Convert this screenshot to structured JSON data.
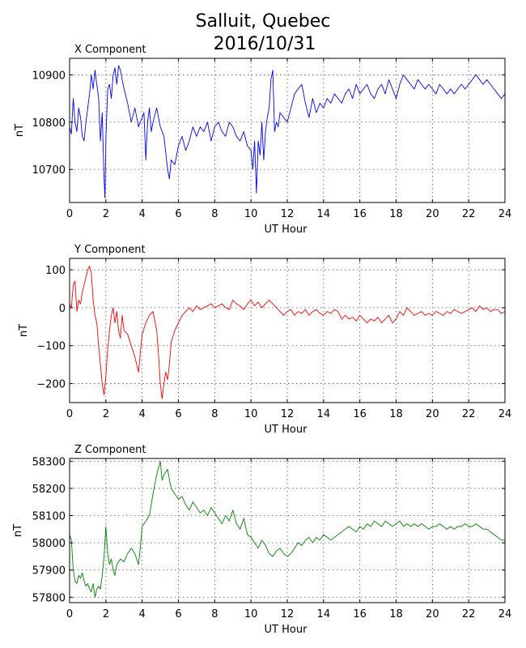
{
  "figure": {
    "title_line1": "Salluit, Quebec",
    "title_line2": "2016/10/31"
  },
  "chart_data": [
    {
      "type": "line",
      "title": "X Component",
      "xlabel": "UT Hour",
      "ylabel": "nT",
      "xlim": [
        0,
        24
      ],
      "ylim": [
        10630,
        10935
      ],
      "xticks": [
        0,
        2,
        4,
        6,
        8,
        10,
        12,
        14,
        16,
        18,
        20,
        22,
        24
      ],
      "yticks": [
        10700,
        10800,
        10900
      ],
      "grid": true,
      "color": "#0000ff",
      "x": [
        0.0,
        0.1,
        0.2,
        0.3,
        0.4,
        0.5,
        0.6,
        0.7,
        0.8,
        0.9,
        1.0,
        1.1,
        1.2,
        1.3,
        1.4,
        1.5,
        1.6,
        1.7,
        1.8,
        1.9,
        1.95,
        2.0,
        2.05,
        2.1,
        2.2,
        2.3,
        2.4,
        2.5,
        2.6,
        2.7,
        2.8,
        2.9,
        3.0,
        3.2,
        3.4,
        3.6,
        3.8,
        4.0,
        4.1,
        4.2,
        4.3,
        4.4,
        4.5,
        4.6,
        4.8,
        5.0,
        5.2,
        5.4,
        5.5,
        5.6,
        5.8,
        6.0,
        6.2,
        6.4,
        6.6,
        6.8,
        7.0,
        7.2,
        7.4,
        7.6,
        7.8,
        8.0,
        8.2,
        8.4,
        8.6,
        8.8,
        9.0,
        9.2,
        9.4,
        9.6,
        9.8,
        10.0,
        10.1,
        10.2,
        10.3,
        10.4,
        10.5,
        10.6,
        10.7,
        10.8,
        10.9,
        11.0,
        11.1,
        11.2,
        11.3,
        11.4,
        11.5,
        11.6,
        11.8,
        12.0,
        12.2,
        12.4,
        12.6,
        12.8,
        13.0,
        13.2,
        13.4,
        13.6,
        13.8,
        14.0,
        14.2,
        14.4,
        14.6,
        14.8,
        15.0,
        15.2,
        15.4,
        15.6,
        15.8,
        16.0,
        16.2,
        16.4,
        16.6,
        16.8,
        17.0,
        17.2,
        17.4,
        17.6,
        17.8,
        18.0,
        18.2,
        18.4,
        18.6,
        18.8,
        19.0,
        19.2,
        19.4,
        19.6,
        19.8,
        20.0,
        20.2,
        20.4,
        20.6,
        20.8,
        21.0,
        21.2,
        21.4,
        21.6,
        21.8,
        22.0,
        22.2,
        22.4,
        22.6,
        22.8,
        23.0,
        23.2,
        23.4,
        23.6,
        23.8,
        24.0
      ],
      "y": [
        10790,
        10775,
        10850,
        10800,
        10780,
        10830,
        10810,
        10770,
        10760,
        10800,
        10830,
        10860,
        10900,
        10870,
        10910,
        10880,
        10850,
        10760,
        10820,
        10680,
        10640,
        10760,
        10820,
        10870,
        10880,
        10850,
        10900,
        10915,
        10880,
        10920,
        10910,
        10890,
        10870,
        10840,
        10800,
        10830,
        10790,
        10810,
        10820,
        10720,
        10800,
        10830,
        10780,
        10800,
        10830,
        10790,
        10770,
        10700,
        10680,
        10720,
        10710,
        10750,
        10770,
        10740,
        10760,
        10790,
        10770,
        10790,
        10780,
        10800,
        10760,
        10790,
        10800,
        10780,
        10770,
        10800,
        10790,
        10770,
        10760,
        10780,
        10750,
        10740,
        10700,
        10760,
        10650,
        10760,
        10730,
        10800,
        10720,
        10780,
        10810,
        10830,
        10890,
        10910,
        10780,
        10800,
        10790,
        10820,
        10810,
        10800,
        10830,
        10860,
        10870,
        10880,
        10840,
        10810,
        10850,
        10820,
        10840,
        10830,
        10850,
        10840,
        10860,
        10850,
        10840,
        10860,
        10870,
        10850,
        10880,
        10860,
        10870,
        10880,
        10860,
        10850,
        10870,
        10880,
        10860,
        10890,
        10870,
        10850,
        10880,
        10900,
        10890,
        10880,
        10870,
        10890,
        10880,
        10870,
        10880,
        10870,
        10860,
        10880,
        10870,
        10860,
        10870,
        10860,
        10870,
        10880,
        10870,
        10880,
        10890,
        10900,
        10890,
        10880,
        10890,
        10880,
        10870,
        10860,
        10850,
        10860
      ]
    },
    {
      "type": "line",
      "title": "Y Component",
      "xlabel": "UT Hour",
      "ylabel": "nT",
      "xlim": [
        0,
        24
      ],
      "ylim": [
        -250,
        130
      ],
      "xticks": [
        0,
        2,
        4,
        6,
        8,
        10,
        12,
        14,
        16,
        18,
        20,
        22,
        24
      ],
      "yticks": [
        -200,
        -100,
        0,
        100
      ],
      "grid": true,
      "color": "#ff0000",
      "x": [
        0.0,
        0.1,
        0.2,
        0.3,
        0.4,
        0.5,
        0.6,
        0.7,
        0.8,
        0.9,
        1.0,
        1.1,
        1.2,
        1.3,
        1.4,
        1.5,
        1.6,
        1.7,
        1.8,
        1.9,
        2.0,
        2.1,
        2.2,
        2.3,
        2.4,
        2.5,
        2.6,
        2.7,
        2.8,
        2.9,
        3.0,
        3.2,
        3.4,
        3.6,
        3.8,
        3.9,
        4.0,
        4.2,
        4.4,
        4.6,
        4.8,
        4.9,
        5.0,
        5.1,
        5.2,
        5.3,
        5.4,
        5.5,
        5.6,
        5.8,
        6.0,
        6.2,
        6.4,
        6.6,
        6.8,
        7.0,
        7.2,
        7.4,
        7.6,
        7.8,
        8.0,
        8.2,
        8.4,
        8.6,
        8.8,
        9.0,
        9.2,
        9.4,
        9.6,
        9.8,
        10.0,
        10.2,
        10.4,
        10.6,
        10.8,
        11.0,
        11.2,
        11.4,
        11.6,
        11.8,
        12.0,
        12.2,
        12.4,
        12.6,
        12.8,
        13.0,
        13.2,
        13.4,
        13.6,
        13.8,
        14.0,
        14.2,
        14.4,
        14.6,
        14.8,
        15.0,
        15.2,
        15.4,
        15.6,
        15.8,
        16.0,
        16.2,
        16.4,
        16.6,
        16.8,
        17.0,
        17.2,
        17.4,
        17.6,
        17.8,
        18.0,
        18.2,
        18.4,
        18.6,
        18.8,
        19.0,
        19.2,
        19.4,
        19.6,
        19.8,
        20.0,
        20.2,
        20.4,
        20.6,
        20.8,
        21.0,
        21.2,
        21.4,
        21.6,
        21.8,
        22.0,
        22.2,
        22.4,
        22.6,
        22.8,
        23.0,
        23.2,
        23.4,
        23.6,
        23.8,
        24.0
      ],
      "y": [
        10,
        0,
        60,
        70,
        -10,
        20,
        10,
        40,
        60,
        80,
        100,
        110,
        90,
        20,
        -20,
        -40,
        -100,
        -150,
        -200,
        -230,
        -180,
        -110,
        -60,
        -20,
        0,
        -40,
        -10,
        -60,
        -80,
        -20,
        -60,
        -70,
        -100,
        -130,
        -170,
        -120,
        -70,
        -40,
        -20,
        -10,
        -60,
        -120,
        -200,
        -240,
        -200,
        -170,
        -190,
        -150,
        -90,
        -60,
        -40,
        -20,
        -10,
        0,
        -10,
        5,
        -5,
        0,
        5,
        10,
        0,
        5,
        10,
        0,
        -5,
        20,
        10,
        5,
        -5,
        10,
        20,
        5,
        15,
        0,
        10,
        20,
        10,
        0,
        -10,
        -20,
        -10,
        -5,
        -20,
        -10,
        -15,
        -5,
        -20,
        -10,
        -5,
        -15,
        -20,
        -10,
        -15,
        -5,
        -10,
        -30,
        -20,
        -30,
        -25,
        -35,
        -20,
        -30,
        -40,
        -30,
        -35,
        -25,
        -40,
        -30,
        -20,
        -40,
        -30,
        -10,
        -20,
        0,
        -10,
        -20,
        -15,
        -10,
        -20,
        -15,
        -20,
        -10,
        -15,
        -20,
        -10,
        -15,
        -5,
        -10,
        -15,
        -10,
        -5,
        0,
        -10,
        5,
        -5,
        0,
        -10,
        -5,
        -5,
        -15,
        -10
      ]
    },
    {
      "type": "line",
      "title": "Z Component",
      "xlabel": "UT Hour",
      "ylabel": "nT",
      "xlim": [
        0,
        24
      ],
      "ylim": [
        57780,
        58310
      ],
      "xticks": [
        0,
        2,
        4,
        6,
        8,
        10,
        12,
        14,
        16,
        18,
        20,
        22,
        24
      ],
      "yticks": [
        57800,
        57900,
        58000,
        58100,
        58200,
        58300
      ],
      "grid": true,
      "color": "#008000",
      "x": [
        0.0,
        0.1,
        0.2,
        0.3,
        0.4,
        0.5,
        0.6,
        0.7,
        0.8,
        0.9,
        1.0,
        1.1,
        1.2,
        1.3,
        1.4,
        1.5,
        1.6,
        1.7,
        1.8,
        1.9,
        2.0,
        2.1,
        2.2,
        2.3,
        2.4,
        2.5,
        2.6,
        2.8,
        3.0,
        3.2,
        3.4,
        3.6,
        3.8,
        3.9,
        4.0,
        4.2,
        4.4,
        4.6,
        4.8,
        5.0,
        5.1,
        5.2,
        5.4,
        5.6,
        5.8,
        6.0,
        6.2,
        6.4,
        6.6,
        6.8,
        7.0,
        7.2,
        7.4,
        7.6,
        7.8,
        8.0,
        8.2,
        8.4,
        8.6,
        8.8,
        9.0,
        9.2,
        9.4,
        9.6,
        9.8,
        10.0,
        10.2,
        10.4,
        10.6,
        10.8,
        11.0,
        11.2,
        11.4,
        11.6,
        11.8,
        12.0,
        12.2,
        12.4,
        12.6,
        12.8,
        13.0,
        13.2,
        13.4,
        13.6,
        13.8,
        14.0,
        14.2,
        14.4,
        14.6,
        14.8,
        15.0,
        15.2,
        15.4,
        15.6,
        15.8,
        16.0,
        16.2,
        16.4,
        16.6,
        16.8,
        17.0,
        17.2,
        17.4,
        17.6,
        17.8,
        18.0,
        18.2,
        18.4,
        18.6,
        18.8,
        19.0,
        19.2,
        19.4,
        19.6,
        19.8,
        20.0,
        20.2,
        20.4,
        20.6,
        20.8,
        21.0,
        21.2,
        21.4,
        21.6,
        21.8,
        22.0,
        22.2,
        22.4,
        22.6,
        22.8,
        23.0,
        23.2,
        23.4,
        23.6,
        23.8,
        24.0
      ],
      "y": [
        58030,
        58010,
        57900,
        57860,
        57850,
        57880,
        57870,
        57890,
        57860,
        57840,
        57850,
        57830,
        57820,
        57850,
        57800,
        57830,
        57840,
        57830,
        57880,
        57950,
        58060,
        57960,
        57920,
        57940,
        57900,
        57880,
        57920,
        57940,
        57930,
        57960,
        57980,
        57960,
        57920,
        57980,
        58060,
        58080,
        58100,
        58180,
        58250,
        58300,
        58230,
        58250,
        58270,
        58200,
        58180,
        58160,
        58170,
        58140,
        58120,
        58150,
        58130,
        58110,
        58120,
        58100,
        58130,
        58110,
        58090,
        58070,
        58100,
        58080,
        58120,
        58070,
        58050,
        58090,
        58030,
        58020,
        58000,
        57980,
        58010,
        57990,
        57960,
        57950,
        57970,
        57980,
        57960,
        57950,
        57960,
        57980,
        58000,
        57990,
        58010,
        58020,
        58000,
        58020,
        58010,
        58030,
        58020,
        58010,
        58020,
        58030,
        58040,
        58050,
        58060,
        58050,
        58040,
        58060,
        58050,
        58070,
        58060,
        58080,
        58070,
        58060,
        58080,
        58070,
        58060,
        58070,
        58080,
        58060,
        58070,
        58060,
        58070,
        58060,
        58070,
        58060,
        58050,
        58060,
        58060,
        58070,
        58060,
        58050,
        58060,
        58050,
        58060,
        58060,
        58070,
        58060,
        58060,
        58070,
        58060,
        58050,
        58050,
        58040,
        58030,
        58020,
        58010,
        58010
      ]
    }
  ]
}
